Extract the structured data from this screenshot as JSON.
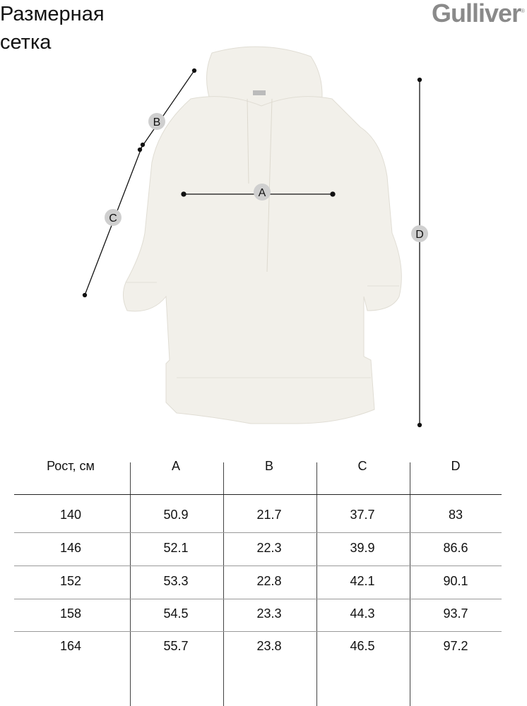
{
  "title_line1": "Размерная",
  "title_line2": "сетка",
  "logo": "Gulliver",
  "labels": {
    "a": "A",
    "b": "B",
    "c": "C",
    "d": "D"
  },
  "garment_color": "#f2f0ea",
  "table": {
    "headers": [
      "Рост, см",
      "A",
      "B",
      "C",
      "D"
    ],
    "rows": [
      [
        "140",
        "50.9",
        "21.7",
        "37.7",
        "83"
      ],
      [
        "146",
        "52.1",
        "22.3",
        "39.9",
        "86.6"
      ],
      [
        "152",
        "53.3",
        "22.8",
        "42.1",
        "90.1"
      ],
      [
        "158",
        "54.5",
        "23.3",
        "44.3",
        "93.7"
      ],
      [
        "164",
        "55.7",
        "23.8",
        "46.5",
        "97.2"
      ]
    ]
  }
}
